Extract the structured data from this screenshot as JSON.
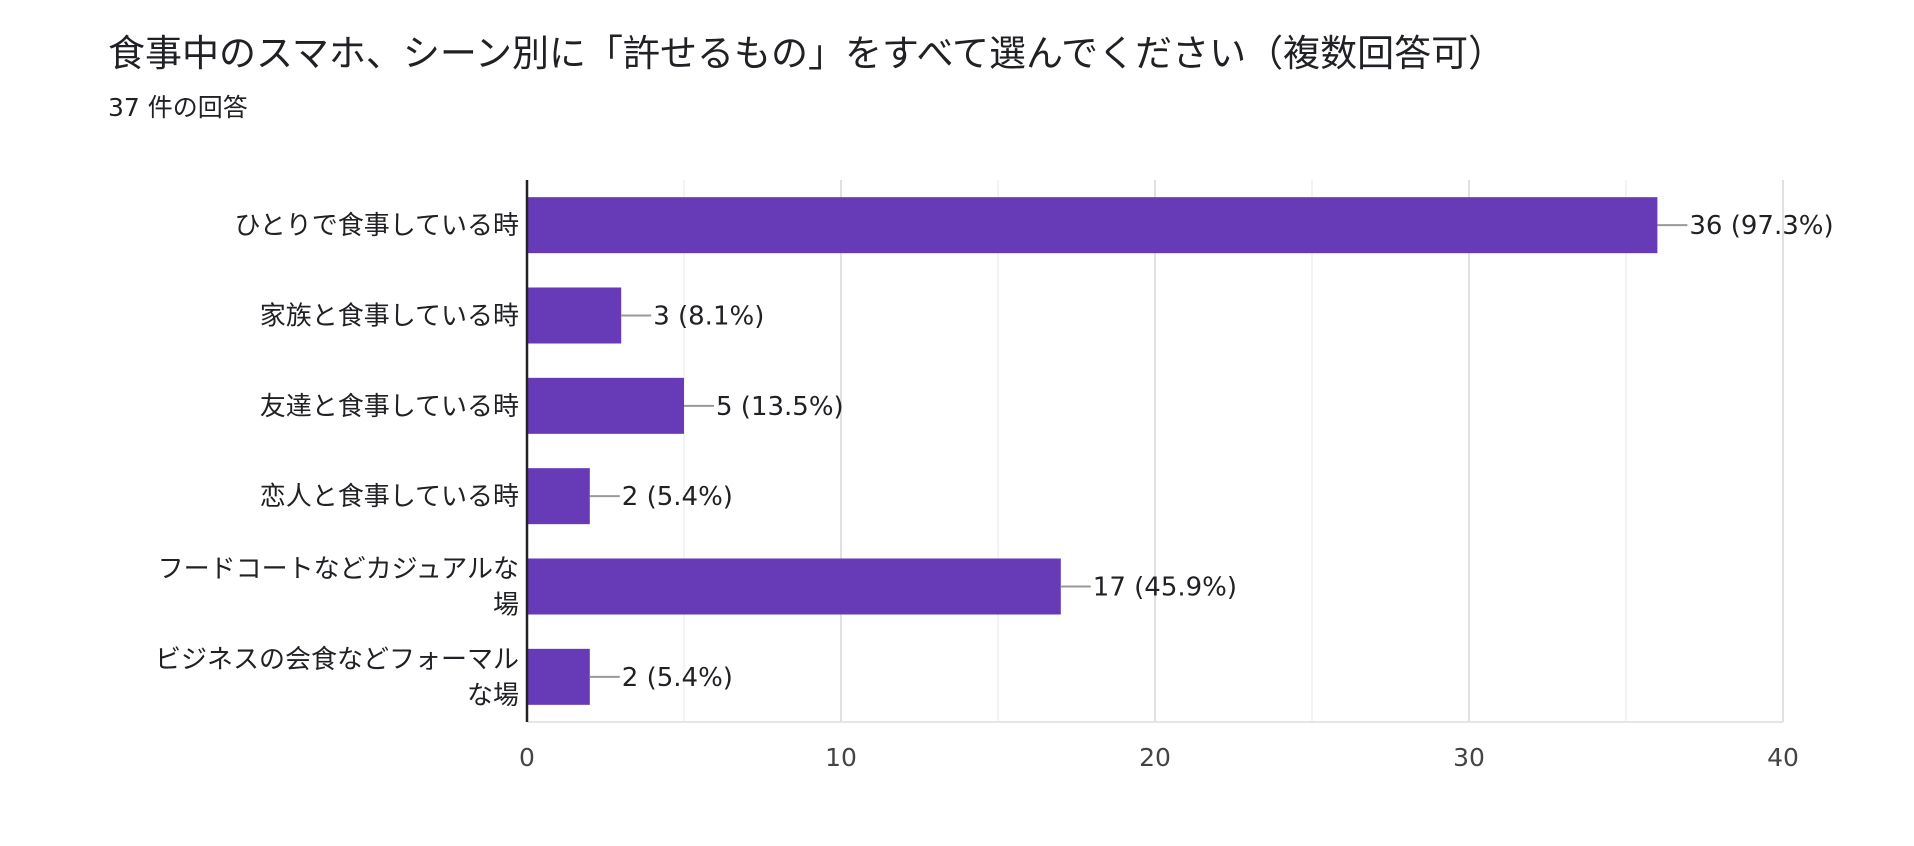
{
  "header": {
    "title": "食事中のスマホ、シーン別に「許せるもの」をすべて選んでください（複数回答可）",
    "subtitle": "37 件の回答"
  },
  "colors": {
    "bar": "#673ab7",
    "grid": "#e8e8e8",
    "axis": "#222222",
    "leader": "#999999"
  },
  "chart_data": {
    "type": "bar",
    "orientation": "horizontal",
    "categories": [
      [
        "ひとりで食事している時"
      ],
      [
        "家族と食事している時"
      ],
      [
        "友達と食事している時"
      ],
      [
        "恋人と食事している時"
      ],
      [
        "フードコートなどカジュアルな",
        "場"
      ],
      [
        "ビジネスの会食などフォーマル",
        "な場"
      ]
    ],
    "values": [
      36,
      3,
      5,
      2,
      17,
      2
    ],
    "value_labels": [
      "36 (97.3%)",
      "3 (8.1%)",
      "5 (13.5%)",
      "2 (5.4%)",
      "17 (45.9%)",
      "2 (5.4%)"
    ],
    "xlim": [
      0,
      40
    ],
    "xticks": [
      0,
      10,
      20,
      30,
      40
    ],
    "grid": true,
    "legend": "none"
  }
}
